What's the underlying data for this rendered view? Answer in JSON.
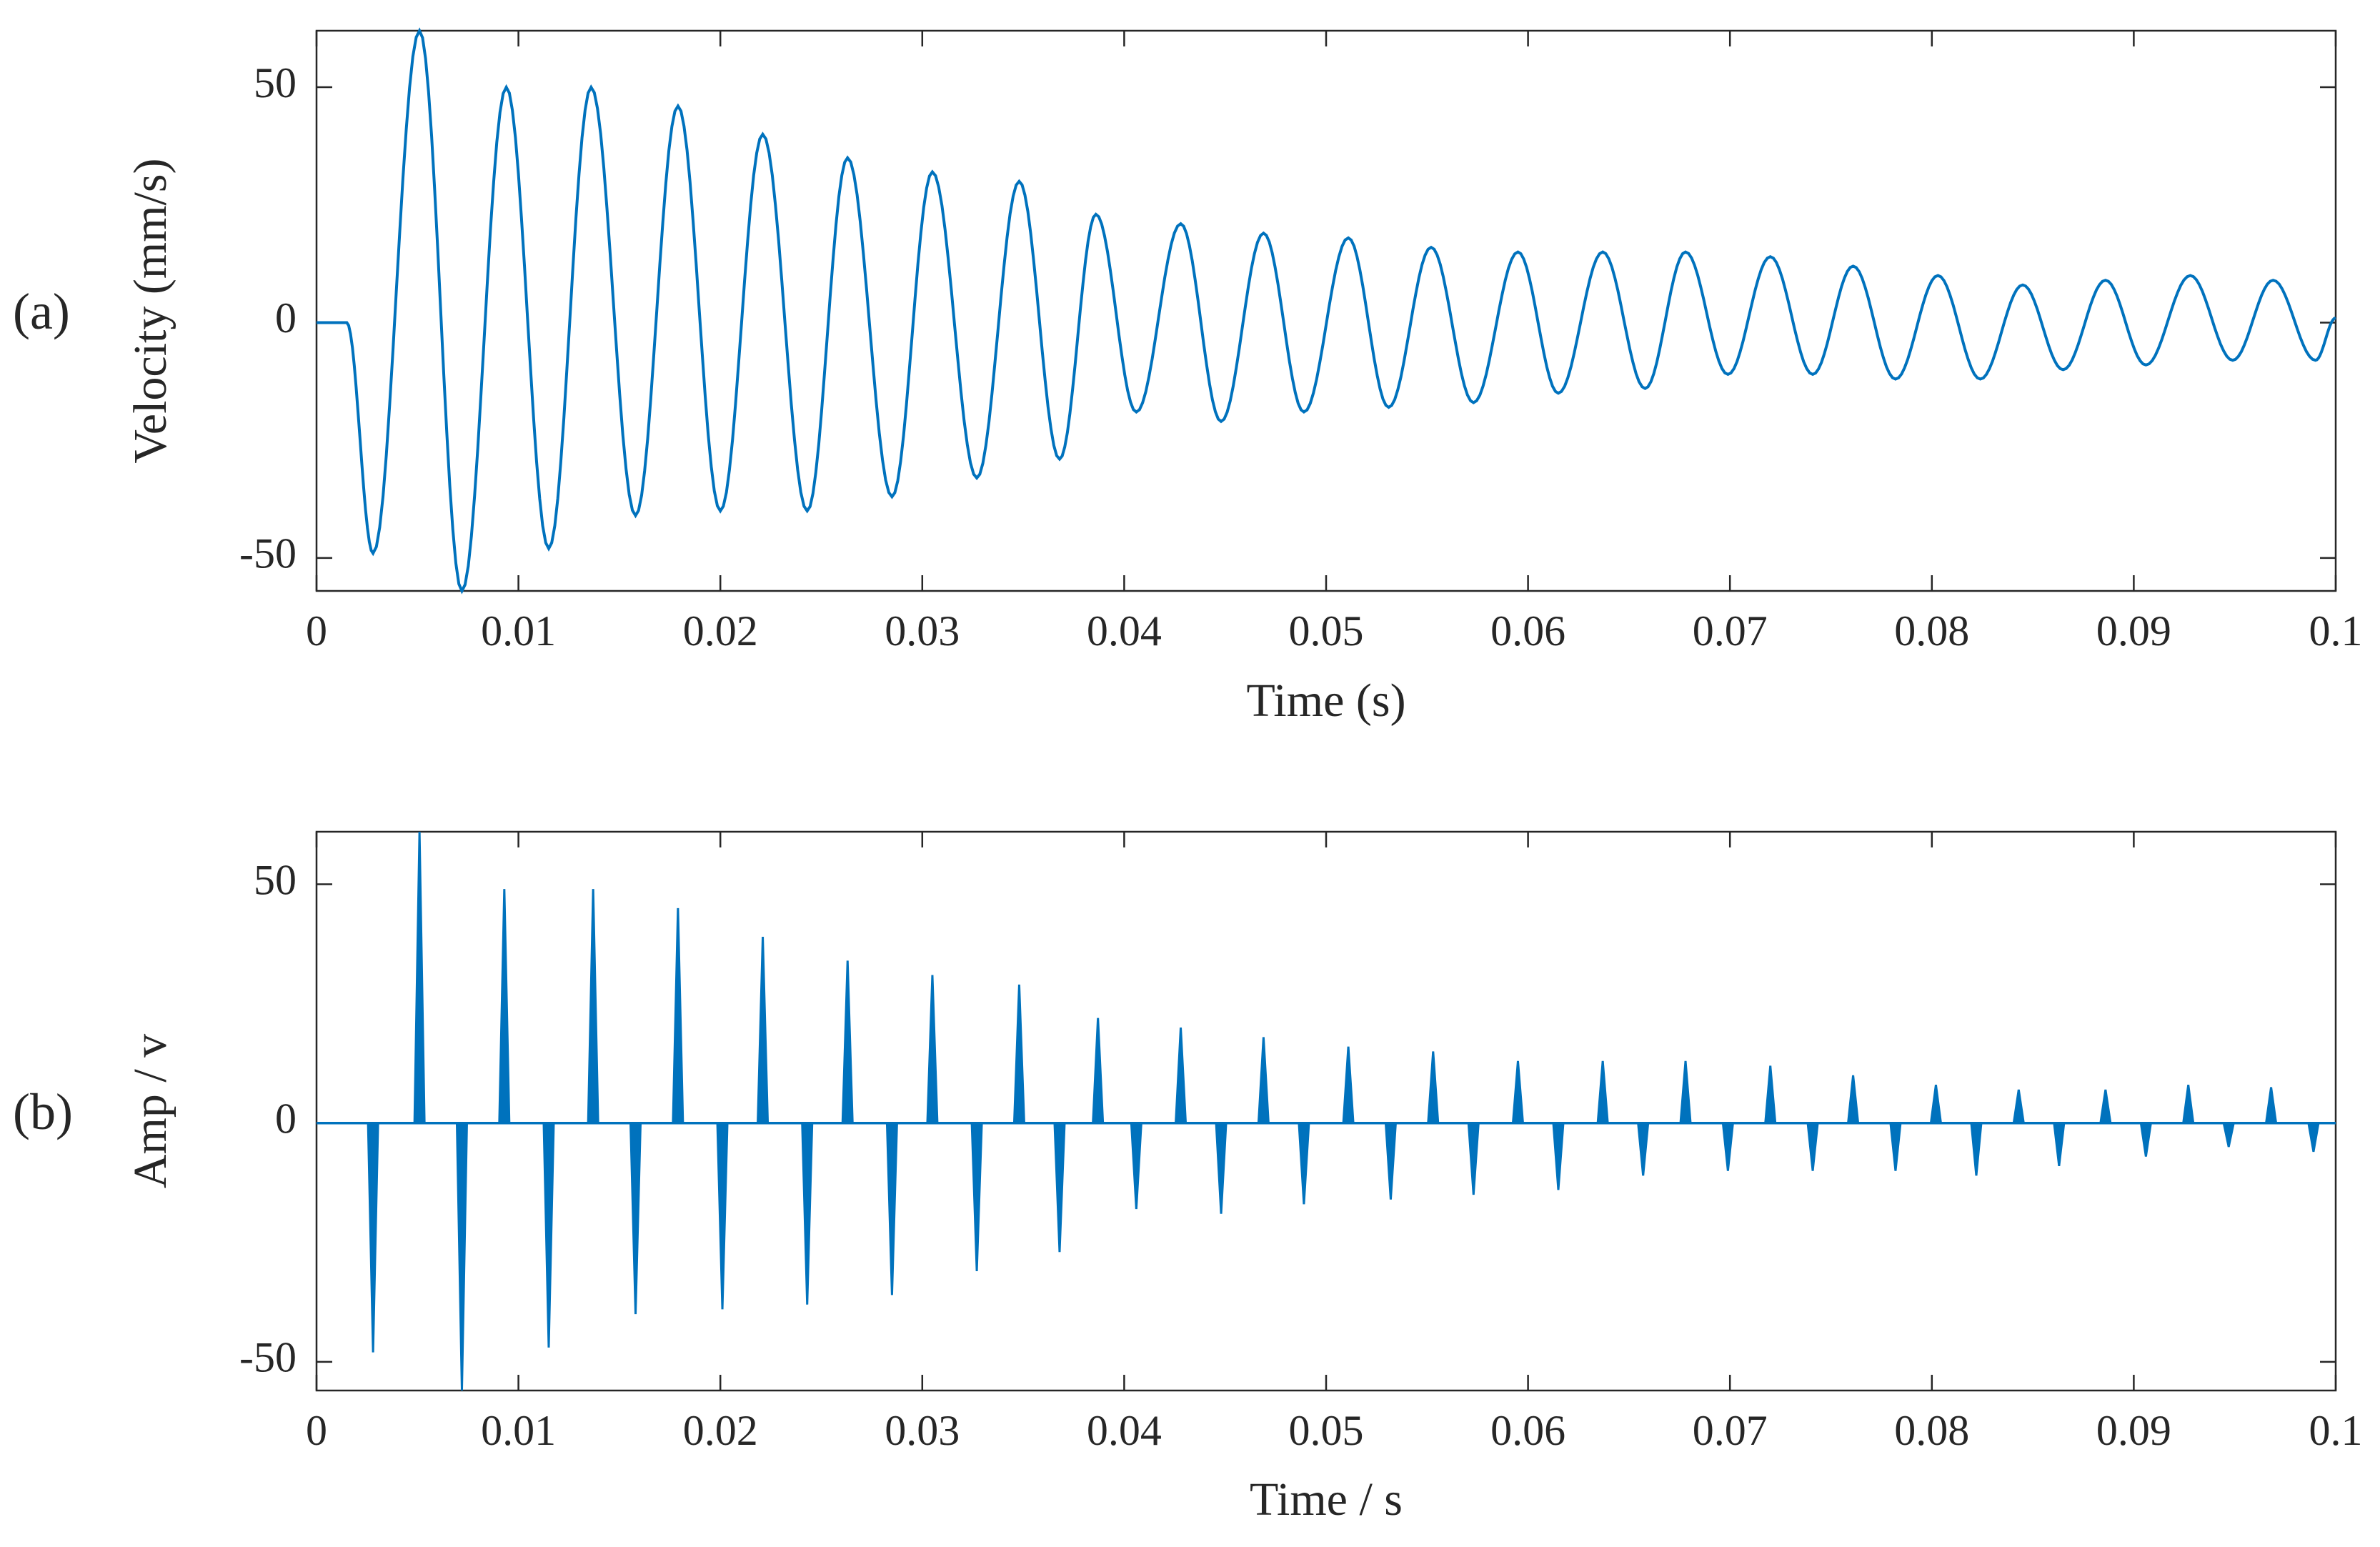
{
  "chart_data": [
    {
      "type": "line",
      "panel_label": "(a)",
      "ylabel": "Velocity (mm/s)",
      "xlabel": "Time (s)",
      "color": "#0072BD",
      "xlim": [
        0,
        0.1
      ],
      "ylim": [
        -57,
        62
      ],
      "xticks": [
        0,
        0.01,
        0.02,
        0.03,
        0.04,
        0.05,
        0.06,
        0.07,
        0.08,
        0.09,
        0.1
      ],
      "yticks": [
        -50,
        0,
        50
      ],
      "x": [
        0,
        0.0015,
        0.0028,
        0.0051,
        0.0072,
        0.0094,
        0.0115,
        0.0136,
        0.0158,
        0.0179,
        0.02,
        0.0221,
        0.0243,
        0.0263,
        0.0285,
        0.0305,
        0.0327,
        0.0348,
        0.0368,
        0.0386,
        0.0406,
        0.0428,
        0.0448,
        0.0469,
        0.0489,
        0.0511,
        0.0531,
        0.0552,
        0.0573,
        0.0595,
        0.0615,
        0.0637,
        0.0658,
        0.0678,
        0.0699,
        0.072,
        0.0741,
        0.0761,
        0.0782,
        0.0803,
        0.0824,
        0.0845,
        0.0865,
        0.0886,
        0.0906,
        0.0928,
        0.0949,
        0.0969,
        0.099,
        0.1
      ],
      "values": [
        0,
        0,
        -49,
        62,
        -57,
        50,
        -48,
        50,
        -41,
        46,
        -40,
        40,
        -40,
        35,
        -37,
        32,
        -33,
        30,
        -29,
        23,
        -19,
        21,
        -21,
        19,
        -19,
        18,
        -18,
        16,
        -17,
        15,
        -15,
        15,
        -14,
        15,
        -11,
        14,
        -11,
        12,
        -12,
        10,
        -12,
        8,
        -10,
        9,
        -9,
        10,
        -8,
        9,
        -8,
        1
      ]
    },
    {
      "type": "stem",
      "panel_label": "(b)",
      "ylabel": "Amp / v",
      "xlabel": "Time / s",
      "color": "#0072BD",
      "xlim": [
        0,
        0.1
      ],
      "ylim": [
        -56,
        61
      ],
      "xticks": [
        0,
        0.01,
        0.02,
        0.03,
        0.04,
        0.05,
        0.06,
        0.07,
        0.08,
        0.09,
        0.1
      ],
      "yticks": [
        -50,
        0,
        50
      ],
      "x": [
        0.0028,
        0.0051,
        0.0072,
        0.0093,
        0.0115,
        0.0137,
        0.0158,
        0.0179,
        0.0201,
        0.0221,
        0.0243,
        0.0263,
        0.0285,
        0.0305,
        0.0327,
        0.0348,
        0.0368,
        0.0387,
        0.0406,
        0.0428,
        0.0448,
        0.0469,
        0.0489,
        0.0511,
        0.0532,
        0.0553,
        0.0573,
        0.0595,
        0.0615,
        0.0637,
        0.0657,
        0.0678,
        0.0699,
        0.072,
        0.0741,
        0.0761,
        0.0782,
        0.0802,
        0.0822,
        0.0843,
        0.0863,
        0.0886,
        0.0906,
        0.0927,
        0.0947,
        0.0968,
        0.0989
      ],
      "values": [
        -48,
        61,
        -56,
        49,
        -47,
        49,
        -40,
        45,
        -39,
        39,
        -38,
        34,
        -36,
        31,
        -31,
        29,
        -27,
        22,
        -18,
        20,
        -19,
        18,
        -17,
        16,
        -16,
        15,
        -15,
        13,
        -14,
        13,
        -11,
        13,
        -10,
        12,
        -10,
        10,
        -10,
        8,
        -11,
        7,
        -9,
        7,
        -7,
        8,
        -5,
        7.5,
        -6
      ]
    }
  ]
}
